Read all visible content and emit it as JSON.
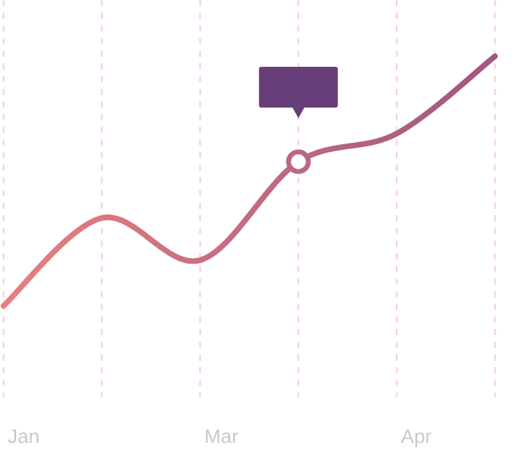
{
  "chart_data": {
    "type": "line",
    "categories": [
      "Jan",
      null,
      "Mar",
      null,
      "Apr",
      null
    ],
    "values": [
      25,
      50,
      38,
      66,
      74,
      96
    ],
    "ylim": [
      0,
      100
    ],
    "gradient": [
      "#e88081",
      "#9c5680"
    ],
    "highlight": 3,
    "tooltip_color": "#673f78",
    "grid_color": "#f9d4d8"
  }
}
